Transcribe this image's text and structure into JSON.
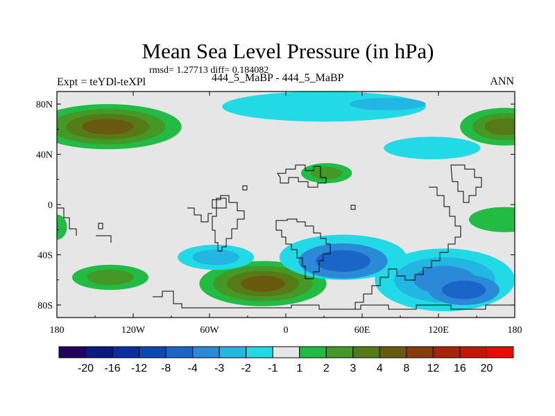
{
  "chart_data": {
    "type": "heatmap",
    "title": "Mean Sea Level Pressure (in hPa)",
    "subtitle_stats": "rmsd= 1.27713 diff= 0.184082",
    "left_label": "Expt = teYDl-teXPl",
    "center_label": "444_5_MaBP - 444_5_MaBP",
    "right_label": "ANN",
    "xlabel": "",
    "ylabel": "",
    "x_range": [
      -180,
      180
    ],
    "y_range": [
      -90,
      90
    ],
    "x_ticks": [
      {
        "value": -180,
        "label": "180"
      },
      {
        "value": -120,
        "label": "120W"
      },
      {
        "value": -60,
        "label": "60W"
      },
      {
        "value": 0,
        "label": "0"
      },
      {
        "value": 60,
        "label": "60E"
      },
      {
        "value": 120,
        "label": "120E"
      },
      {
        "value": 180,
        "label": "180"
      }
    ],
    "y_ticks": [
      {
        "value": 80,
        "label": "80N"
      },
      {
        "value": 40,
        "label": "40N"
      },
      {
        "value": 0,
        "label": "0"
      },
      {
        "value": -40,
        "label": "40S"
      },
      {
        "value": -80,
        "label": "80S"
      }
    ],
    "colorbar": {
      "levels": [
        "-20",
        "-16",
        "-12",
        "-8",
        "-4",
        "-3",
        "-2",
        "-1",
        "1",
        "2",
        "3",
        "4",
        "8",
        "12",
        "16",
        "20"
      ],
      "colors": [
        "#200060",
        "#0a1a80",
        "#0a2ea0",
        "#0a48b4",
        "#1a66c8",
        "#2a8ad8",
        "#22b6e2",
        "#22dae6",
        "#e6e6e6",
        "#22bb44",
        "#449926",
        "#557a18",
        "#6a5a10",
        "#8a3c08",
        "#a82406",
        "#c81404",
        "#e80c00"
      ]
    },
    "background_color": "#e6e6e6",
    "regions": [
      {
        "name": "north-pacific-high",
        "cx": -140,
        "cy": 62,
        "rx": 58,
        "ry": 18,
        "levels": [
          1,
          2,
          3,
          4
        ]
      },
      {
        "name": "south-pacific-high",
        "cx": -138,
        "cy": -58,
        "rx": 30,
        "ry": 10,
        "levels": [
          1,
          2
        ]
      },
      {
        "name": "south-atlantic-high",
        "cx": -18,
        "cy": -63,
        "rx": 50,
        "ry": 18,
        "levels": [
          1,
          2,
          3,
          4
        ]
      },
      {
        "name": "central-asia-high",
        "cx": 32,
        "cy": 25,
        "rx": 20,
        "ry": 8,
        "levels": [
          1,
          2
        ]
      },
      {
        "name": "east-asia-high",
        "cx": 172,
        "cy": 62,
        "rx": 35,
        "ry": 15,
        "levels": [
          1,
          2,
          3
        ]
      },
      {
        "name": "east-pacific-high",
        "cx": 172,
        "cy": -12,
        "rx": 28,
        "ry": 10,
        "levels": [
          1
        ]
      },
      {
        "name": "west-pacific-high",
        "cx": -180,
        "cy": -18,
        "rx": 8,
        "ry": 10,
        "levels": [
          1
        ]
      },
      {
        "name": "arctic-low",
        "cx": 30,
        "cy": 78,
        "rx": 80,
        "ry": 12,
        "levels": [
          -1
        ]
      },
      {
        "name": "arctic-low-core",
        "cx": 80,
        "cy": 80,
        "rx": 30,
        "ry": 5,
        "levels": [
          -2
        ]
      },
      {
        "name": "north-pacific-low",
        "cx": 115,
        "cy": 45,
        "rx": 38,
        "ry": 9,
        "levels": [
          -1
        ]
      },
      {
        "name": "subpolar-south-low-a",
        "cx": 45,
        "cy": -42,
        "rx": 50,
        "ry": 18,
        "levels": [
          -1,
          -2
        ]
      },
      {
        "name": "subpolar-south-low-b",
        "cx": 125,
        "cy": -60,
        "rx": 55,
        "ry": 25,
        "levels": [
          -1,
          -2,
          -3
        ]
      },
      {
        "name": "south-america-low",
        "cx": -55,
        "cy": -42,
        "rx": 30,
        "ry": 10,
        "levels": [
          -1,
          -2
        ]
      },
      {
        "name": "subantarctic-low",
        "cx": 45,
        "cy": -45,
        "rx": 35,
        "ry": 14,
        "levels": [
          -3,
          -4
        ]
      },
      {
        "name": "australian-south-low",
        "cx": 140,
        "cy": -68,
        "rx": 28,
        "ry": 12,
        "levels": [
          -3,
          -4
        ]
      }
    ]
  }
}
